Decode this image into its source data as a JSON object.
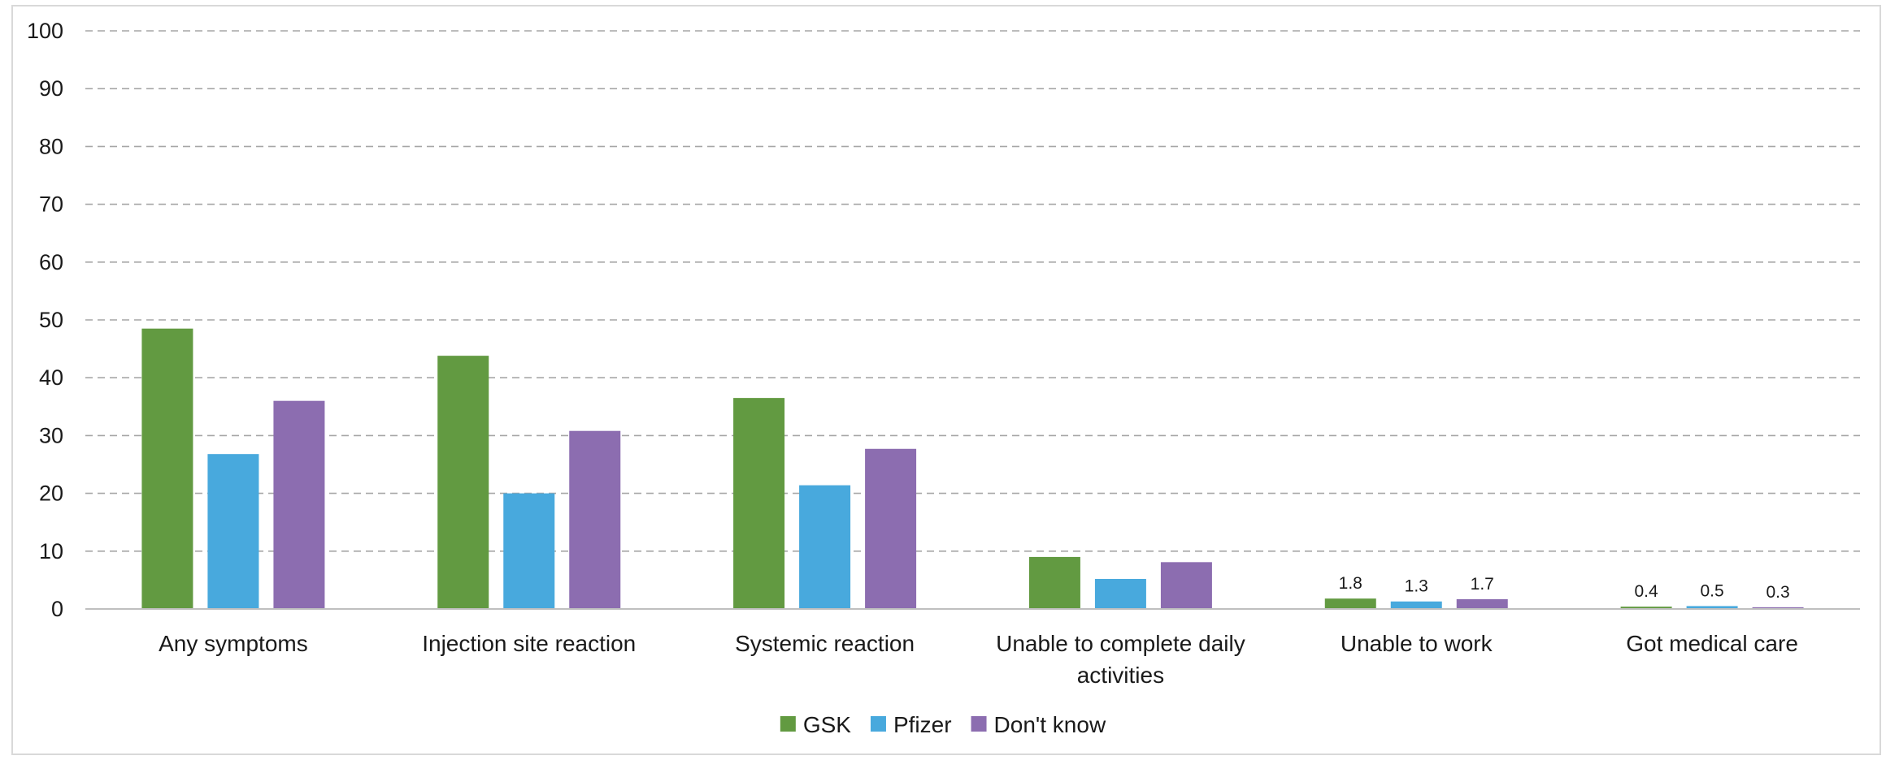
{
  "chart_data": {
    "type": "bar",
    "title": "",
    "xlabel": "",
    "ylabel": "",
    "ylim": [
      0,
      100
    ],
    "yticks": [
      0,
      10,
      20,
      30,
      40,
      50,
      60,
      70,
      80,
      90,
      100
    ],
    "grid": true,
    "legend_position": "bottom",
    "categories": [
      "Any symptoms",
      "Injection site reaction",
      "Systemic reaction",
      "Unable to complete daily activities",
      "Unable to work",
      "Got medical care"
    ],
    "category_lines": [
      [
        "Any symptoms"
      ],
      [
        "Injection site reaction"
      ],
      [
        "Systemic reaction"
      ],
      [
        "Unable to complete daily",
        "activities"
      ],
      [
        "Unable to work"
      ],
      [
        "Got medical care"
      ]
    ],
    "series": [
      {
        "name": "GSK",
        "color": "#629a41",
        "values": [
          48.5,
          43.8,
          36.5,
          9.0,
          1.8,
          0.4
        ],
        "labels": [
          "",
          "",
          "",
          "",
          "1.8",
          "0.4"
        ]
      },
      {
        "name": "Pfizer",
        "color": "#48a9dd",
        "values": [
          26.8,
          20.0,
          21.4,
          5.2,
          1.3,
          0.5
        ],
        "labels": [
          "",
          "",
          "",
          "",
          "1.3",
          "0.5"
        ]
      },
      {
        "name": "Don't know",
        "color": "#8c6db0",
        "values": [
          36.0,
          30.8,
          27.7,
          8.1,
          1.7,
          0.3
        ],
        "labels": [
          "",
          "",
          "",
          "",
          "1.7",
          "0.3"
        ]
      }
    ]
  }
}
